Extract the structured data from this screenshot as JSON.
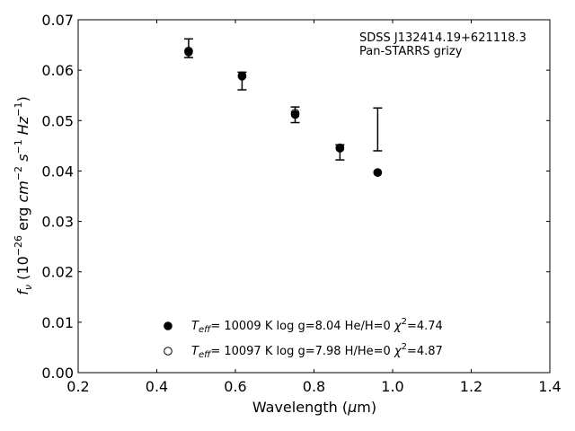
{
  "chart_data": {
    "type": "scatter",
    "annotation": [
      "SDSS J132414.19+621118.3",
      "Pan-STARRS grizy"
    ],
    "xlabel": "Wavelength (μm)",
    "ylabel": "f_ν (10^-26 erg cm^-2 s^-1 Hz^-1)",
    "xlim": [
      0.2,
      1.4
    ],
    "ylim": [
      0.0,
      0.07
    ],
    "xticks": [
      "0.2",
      "0.4",
      "0.6",
      "0.8",
      "1.0",
      "1.2",
      "1.4"
    ],
    "yticks": [
      "0.00",
      "0.01",
      "0.02",
      "0.03",
      "0.04",
      "0.05",
      "0.06",
      "0.07"
    ],
    "grid": false,
    "legend_position": "lower-center",
    "observed": [
      {
        "x": 0.481,
        "y_low": 0.0625,
        "y_high": 0.0662
      },
      {
        "x": 0.617,
        "y_low": 0.0561,
        "y_high": 0.0596
      },
      {
        "x": 0.752,
        "y_low": 0.0496,
        "y_high": 0.0527
      },
      {
        "x": 0.866,
        "y_low": 0.0422,
        "y_high": 0.0452
      },
      {
        "x": 0.962,
        "y_low": 0.044,
        "y_high": 0.0525
      }
    ],
    "series": [
      {
        "marker": "filled-circle",
        "label": "T_eff= 10009 K  log g=8.04  He/H=0  χ^2=4.74",
        "label_parts": {
          "teff": "= 10009 K  log g=8.04  He/H=0  ",
          "chi": "=4.74"
        },
        "points": [
          {
            "x": 0.481,
            "y": 0.0636
          },
          {
            "x": 0.617,
            "y": 0.0588
          },
          {
            "x": 0.752,
            "y": 0.0512
          },
          {
            "x": 0.866,
            "y": 0.0445
          },
          {
            "x": 0.962,
            "y": 0.0397
          }
        ]
      },
      {
        "marker": "open-circle",
        "label": "T_eff= 10097 K  log g=7.98  H/He=0  χ^2=4.87",
        "label_parts": {
          "teff": "= 10097 K  log g=7.98  H/He=0  ",
          "chi": "=4.87"
        },
        "points": [
          {
            "x": 0.481,
            "y": 0.0638
          },
          {
            "x": 0.617,
            "y": 0.0589
          },
          {
            "x": 0.752,
            "y": 0.0515
          },
          {
            "x": 0.866,
            "y": 0.0446
          },
          {
            "x": 0.962,
            "y": 0.0397
          }
        ]
      }
    ]
  }
}
